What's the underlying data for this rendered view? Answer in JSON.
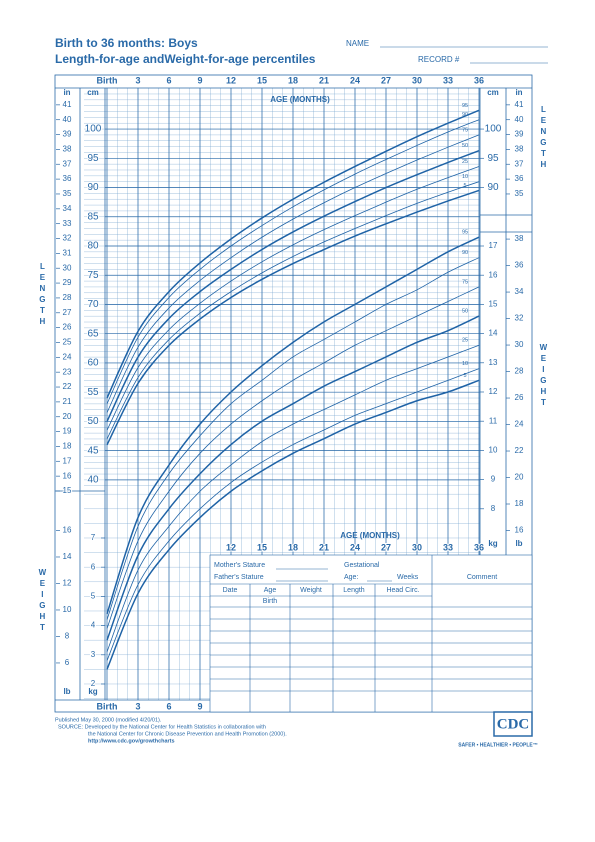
{
  "header": {
    "title": "Birth to 36 months: Boys",
    "subtitle": "Length-for-age andWeight-for-age percentiles",
    "name_label": "NAME",
    "record_label": "RECORD #"
  },
  "chart_data": [
    {
      "type": "line",
      "y_label": "LENGTH",
      "y_unit": "cm",
      "y2_unit": "in",
      "x_label": "AGE (MONTHS)",
      "x": [
        0,
        3,
        6,
        9,
        12,
        15,
        18,
        21,
        24,
        27,
        30,
        33,
        36
      ],
      "xlim": [
        0,
        36
      ],
      "xticks": [
        {
          "value": 0,
          "label": "Birth"
        },
        3,
        6,
        9,
        12,
        15,
        18,
        21,
        24,
        27,
        30,
        33,
        36
      ],
      "ylim": [
        38.1,
        106.68
      ],
      "yticks": [
        40,
        45,
        50,
        55,
        60,
        65,
        70,
        75,
        80,
        85,
        90,
        95,
        100
      ],
      "right_yticks": [
        90,
        95,
        100
      ],
      "y2lim": [
        15,
        42
      ],
      "y2ticks": [
        15,
        16,
        17,
        18,
        19,
        20,
        21,
        22,
        23,
        24,
        25,
        26,
        27,
        28,
        29,
        30,
        31,
        32,
        33,
        34,
        35,
        36,
        37,
        38,
        39,
        40,
        41
      ],
      "right_y2ticks": [
        35,
        36,
        37,
        38,
        39,
        40,
        41
      ],
      "series": [
        {
          "name": "95",
          "color": "#1f63a6",
          "values": [
            54.0,
            65.4,
            72.2,
            77.1,
            81.2,
            84.8,
            88.0,
            90.9,
            93.6,
            96.2,
            98.7,
            101.0,
            103.2
          ]
        },
        {
          "name": "90",
          "color": "#1f63a6",
          "values": [
            53.0,
            64.4,
            71.2,
            76.0,
            80.0,
            83.5,
            86.7,
            89.6,
            92.3,
            94.8,
            97.2,
            99.5,
            101.6
          ]
        },
        {
          "name": "75",
          "color": "#1f63a6",
          "values": [
            51.5,
            62.7,
            69.4,
            74.1,
            78.0,
            81.5,
            84.6,
            87.4,
            90.0,
            92.4,
            94.7,
            96.9,
            99.0
          ]
        },
        {
          "name": "50",
          "color": "#1f63a6",
          "values": [
            50.0,
            61.0,
            67.6,
            72.2,
            76.0,
            79.4,
            82.4,
            85.1,
            87.6,
            90.0,
            92.2,
            94.3,
            96.3
          ]
        },
        {
          "name": "25",
          "color": "#1f63a6",
          "values": [
            48.5,
            59.2,
            65.7,
            70.2,
            74.0,
            77.3,
            80.2,
            82.8,
            85.2,
            87.5,
            89.7,
            91.7,
            93.6
          ]
        },
        {
          "name": "10",
          "color": "#1f63a6",
          "values": [
            47.0,
            57.5,
            64.0,
            68.5,
            72.2,
            75.4,
            78.2,
            80.7,
            83.0,
            85.2,
            87.3,
            89.2,
            91.0
          ]
        },
        {
          "name": "5",
          "color": "#1f63a6",
          "values": [
            46.0,
            56.5,
            63.0,
            67.5,
            71.2,
            74.3,
            77.0,
            79.4,
            81.7,
            83.8,
            85.8,
            87.7,
            89.5
          ]
        }
      ]
    },
    {
      "type": "line",
      "y_label": "WEIGHT",
      "y_unit": "kg",
      "y2_unit": "lb",
      "x_label": "AGE (MONTHS)",
      "x": [
        0,
        3,
        6,
        9,
        12,
        15,
        18,
        21,
        24,
        27,
        30,
        33,
        36
      ],
      "xlim": [
        0,
        36
      ],
      "xticks": [
        12,
        15,
        18,
        21,
        24,
        27,
        30,
        33,
        36
      ],
      "bottom_xticks": [
        {
          "value": 0,
          "label": "Birth"
        },
        3,
        6,
        9
      ],
      "ylim": [
        1.4,
        17.5
      ],
      "yticks": [
        8,
        9,
        10,
        11,
        12,
        13,
        14,
        15,
        16,
        17
      ],
      "left_yticks": [
        2,
        3,
        4,
        5,
        6,
        7
      ],
      "y2lim": [
        3.09,
        38.58
      ],
      "y2ticks": [
        16,
        18,
        20,
        22,
        24,
        26,
        28,
        30,
        32,
        34,
        36,
        38
      ],
      "left_y2ticks": [
        6,
        8,
        10,
        12,
        14,
        16
      ],
      "series": [
        {
          "name": "95",
          "color": "#1f63a6",
          "values": [
            4.4,
            7.7,
            9.5,
            10.9,
            12.0,
            12.9,
            13.7,
            14.4,
            15.0,
            15.6,
            16.2,
            16.8,
            17.3
          ]
        },
        {
          "name": "90",
          "color": "#1f63a6",
          "values": [
            4.2,
            7.4,
            9.2,
            10.5,
            11.6,
            12.4,
            13.2,
            13.8,
            14.4,
            15.0,
            15.5,
            16.1,
            16.6
          ]
        },
        {
          "name": "75",
          "color": "#1f63a6",
          "values": [
            3.9,
            6.9,
            8.6,
            9.9,
            10.9,
            11.7,
            12.4,
            13.0,
            13.6,
            14.1,
            14.6,
            15.1,
            15.6
          ]
        },
        {
          "name": "50",
          "color": "#1f63a6",
          "values": [
            3.5,
            6.4,
            8.0,
            9.2,
            10.2,
            11.0,
            11.6,
            12.2,
            12.7,
            13.2,
            13.7,
            14.1,
            14.6
          ]
        },
        {
          "name": "25",
          "color": "#1f63a6",
          "values": [
            3.1,
            5.9,
            7.4,
            8.6,
            9.5,
            10.3,
            10.9,
            11.4,
            11.9,
            12.4,
            12.8,
            13.2,
            13.6
          ]
        },
        {
          "name": "10",
          "color": "#1f63a6",
          "values": [
            2.8,
            5.4,
            6.9,
            8.0,
            8.9,
            9.6,
            10.2,
            10.7,
            11.2,
            11.6,
            12.0,
            12.4,
            12.8
          ]
        },
        {
          "name": "5",
          "color": "#1f63a6",
          "values": [
            2.5,
            5.1,
            6.6,
            7.7,
            8.6,
            9.3,
            9.9,
            10.4,
            10.9,
            11.3,
            11.7,
            12.0,
            12.4
          ]
        }
      ]
    }
  ],
  "form": {
    "mother": "Mother's Stature",
    "father": "Father's Stature",
    "gestational": "Gestational",
    "age": "Age:",
    "weeks": "Weeks",
    "comment": "Comment",
    "columns": [
      "Date",
      "Age",
      "Weight",
      "Length",
      "Head Circ."
    ],
    "birth": "Birth"
  },
  "footer": {
    "published": "Published May 30, 2000 (modified 4/20/01).",
    "source_lines": [
      "SOURCE: Developed by the National Center for Health Statistics in collaboration with",
      "the National Center for Chronic Disease Prevention and Health Promotion (2000)."
    ],
    "url": "http://www.cdc.gov/growthcharts",
    "logo": "CDC",
    "tagline": "SAFER • HEALTHIER • PEOPLE™"
  }
}
